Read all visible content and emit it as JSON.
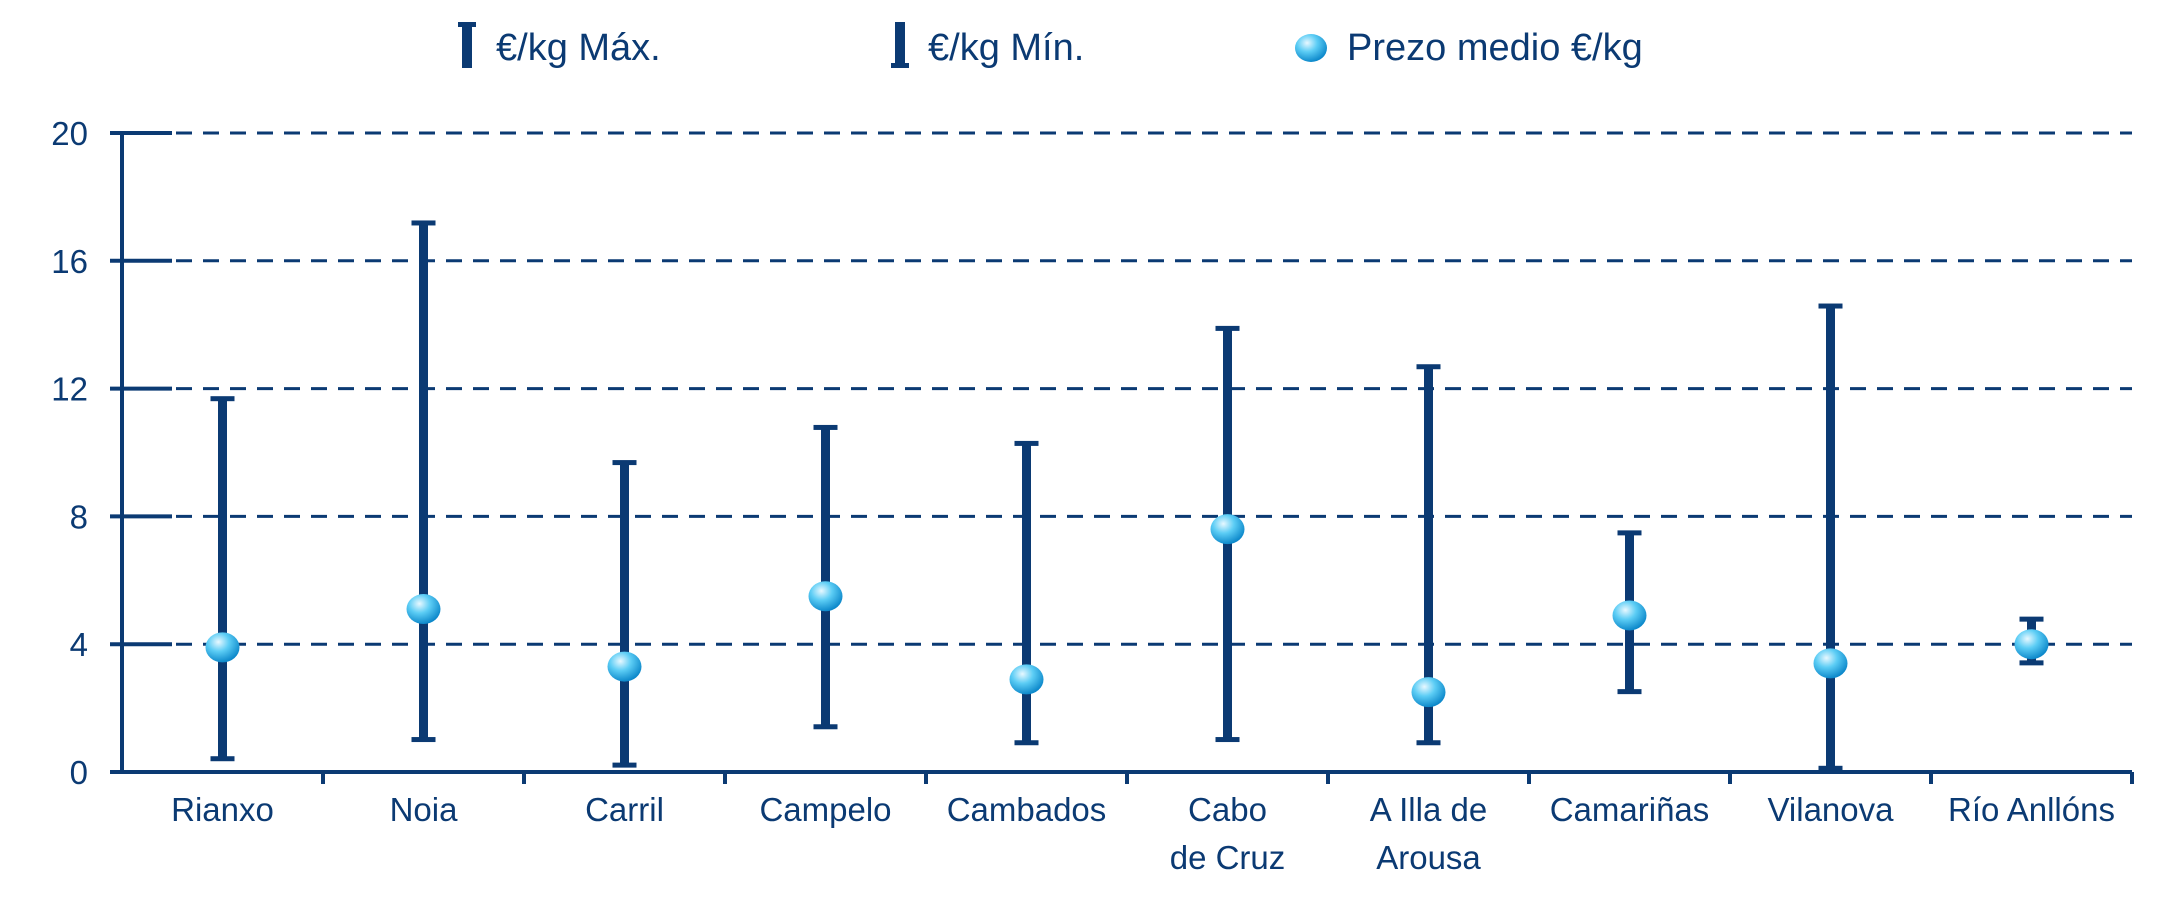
{
  "chart_data": {
    "type": "range-with-mean",
    "title": "",
    "xlabel": "",
    "ylabel": "",
    "ylim": [
      0,
      20
    ],
    "yticks": [
      0,
      4,
      8,
      12,
      16,
      20
    ],
    "grid": "horizontal dashed",
    "legend": {
      "placement": "top",
      "items": [
        {
          "name": "€/kg Máx.",
          "symbol": "max-bar"
        },
        {
          "name": "€/kg Mín.",
          "symbol": "min-bar"
        },
        {
          "name": "Prezo medio €/kg",
          "symbol": "mean-dot"
        }
      ]
    },
    "categories": [
      {
        "lines": [
          "Rianxo"
        ],
        "max": 11.7,
        "min": 0.4,
        "mean": 3.9
      },
      {
        "lines": [
          "Noia"
        ],
        "max": 17.2,
        "min": 1.0,
        "mean": 5.1
      },
      {
        "lines": [
          "Carril"
        ],
        "max": 9.7,
        "min": 0.2,
        "mean": 3.3
      },
      {
        "lines": [
          "Campelo"
        ],
        "max": 10.8,
        "min": 1.4,
        "mean": 5.5
      },
      {
        "lines": [
          "Cambados"
        ],
        "max": 10.3,
        "min": 0.9,
        "mean": 2.9
      },
      {
        "lines": [
          "Cabo",
          "de Cruz"
        ],
        "max": 13.9,
        "min": 1.0,
        "mean": 7.6
      },
      {
        "lines": [
          "A Illa de",
          "Arousa"
        ],
        "max": 12.7,
        "min": 0.9,
        "mean": 2.5
      },
      {
        "lines": [
          "Camariñas"
        ],
        "max": 7.5,
        "min": 2.5,
        "mean": 4.9
      },
      {
        "lines": [
          "Vilanova"
        ],
        "max": 14.6,
        "min": 0.1,
        "mean": 3.4
      },
      {
        "lines": [
          "Río Anllóns"
        ],
        "max": 4.8,
        "min": 3.4,
        "mean": 4.0
      }
    ],
    "colors": {
      "bar": "#0b3a73",
      "grid": "#0b3a73",
      "dot_light": "#e8f8ff",
      "dot_mid": "#5ccdf5",
      "dot_dark": "#0a86c9"
    }
  }
}
